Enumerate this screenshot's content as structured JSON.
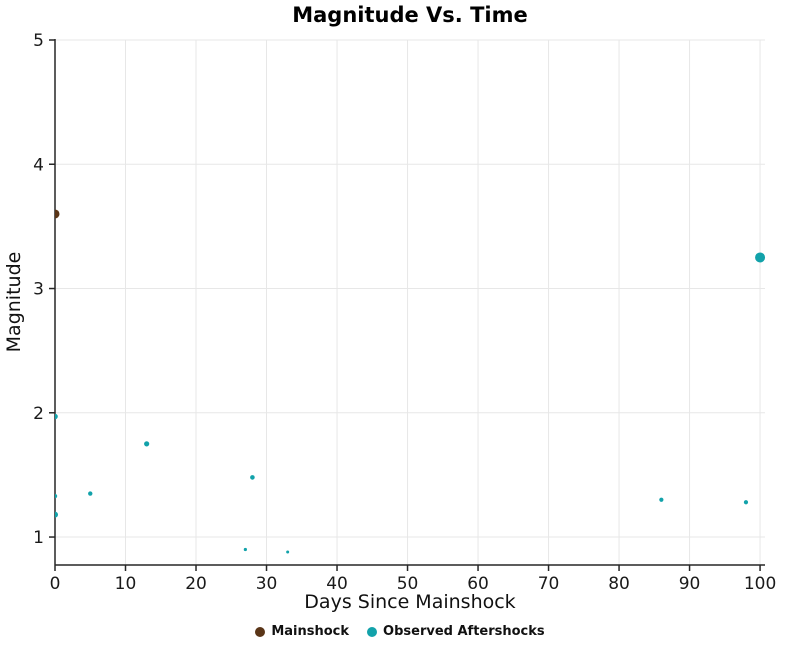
{
  "chart_data": {
    "type": "scatter",
    "title": "Magnitude Vs. Time",
    "xlabel": "Days Since Mainshock",
    "ylabel": "Magnitude",
    "xlim": [
      0,
      100.7
    ],
    "ylim": [
      0.775,
      5
    ],
    "xticks": [
      0,
      10,
      20,
      30,
      40,
      50,
      60,
      70,
      80,
      90,
      100
    ],
    "yticks": [
      1,
      2,
      3,
      4,
      5
    ],
    "grid": true,
    "legend_position": "bottom-center",
    "colors": {
      "grid": "#e7e7e7",
      "spine": "#262626",
      "tick_text": "#1a1a1a"
    },
    "series": [
      {
        "name": "Mainshock",
        "color": "#5a3517",
        "points": [
          {
            "x": 0,
            "y": 3.6,
            "r": 4.5
          }
        ]
      },
      {
        "name": "Observed Aftershocks",
        "color": "#12a2aa",
        "points": [
          {
            "x": 0,
            "y": 1.97,
            "r": 2.8
          },
          {
            "x": 0,
            "y": 1.33,
            "r": 2.2
          },
          {
            "x": 0,
            "y": 1.18,
            "r": 3.0
          },
          {
            "x": 5,
            "y": 1.35,
            "r": 2.2
          },
          {
            "x": 13,
            "y": 1.75,
            "r": 2.6
          },
          {
            "x": 27,
            "y": 0.9,
            "r": 1.6
          },
          {
            "x": 28,
            "y": 1.48,
            "r": 2.3
          },
          {
            "x": 33,
            "y": 0.88,
            "r": 1.5
          },
          {
            "x": 86,
            "y": 1.3,
            "r": 2.1
          },
          {
            "x": 98,
            "y": 1.28,
            "r": 2.1
          },
          {
            "x": 100,
            "y": 3.25,
            "r": 5.0
          }
        ]
      }
    ]
  }
}
